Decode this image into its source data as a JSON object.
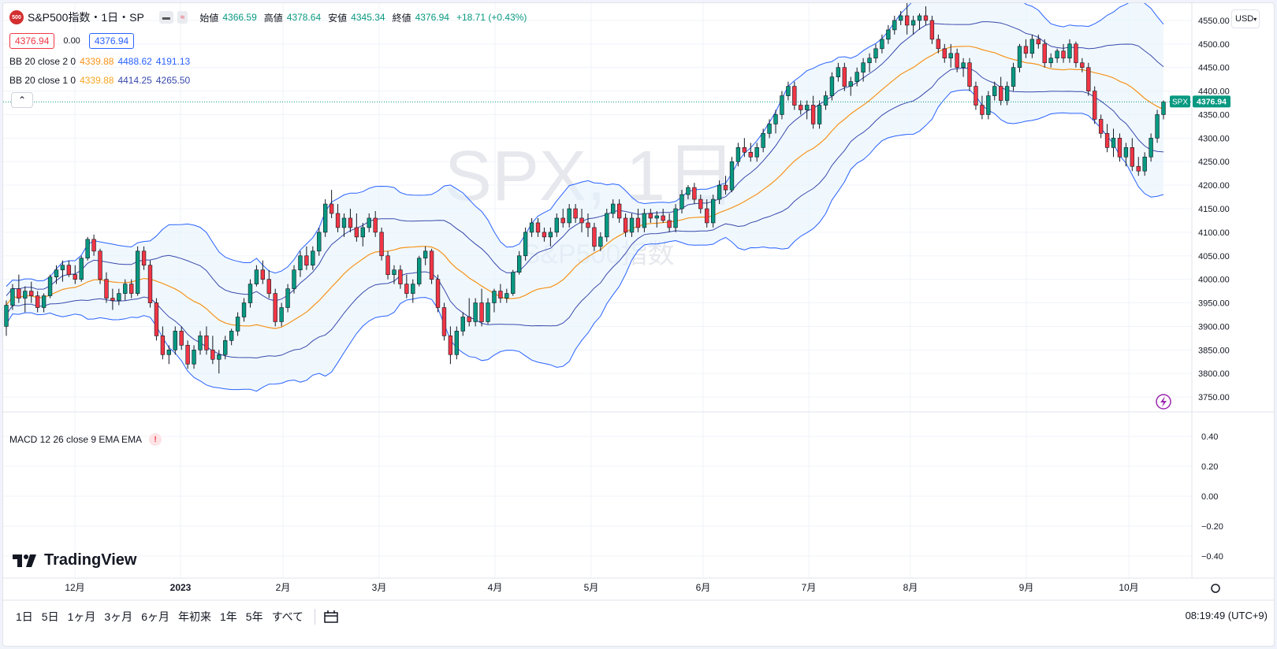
{
  "header": {
    "logo": "500",
    "title": "S&P500指数・1日・SP",
    "ohlc": [
      {
        "label": "始値",
        "value": "4366.59"
      },
      {
        "label": "高値",
        "value": "4378.64"
      },
      {
        "label": "安値",
        "value": "4345.34"
      },
      {
        "label": "終値",
        "value": "4376.94"
      }
    ],
    "change": "+18.71 (+0.43%)",
    "bid": "4376.94",
    "spread": "0.00",
    "ask": "4376.94"
  },
  "indicators": {
    "bb1": {
      "label": "BB 20 close 2 0",
      "mid": "4339.88",
      "upper": "4488.62",
      "lower": "4191.13"
    },
    "bb2": {
      "label": "BB 20 close 1 0",
      "mid": "4339.88",
      "upper": "4414.25",
      "lower": "4265.50"
    },
    "macd": {
      "label": "MACD 12 26 close 9 EMA EMA"
    }
  },
  "watermark": {
    "main": "SPX, 1日",
    "sub": "S&P500指数"
  },
  "currency": "USD",
  "last_price_tag": {
    "symbol": "SPX",
    "price": "4376.94"
  },
  "price_axis": [
    "4550.00",
    "4500.00",
    "4450.00",
    "4400.00",
    "4350.00",
    "4300.00",
    "4250.00",
    "4200.00",
    "4150.00",
    "4100.00",
    "4050.00",
    "4000.00",
    "3950.00",
    "3900.00",
    "3850.00",
    "3800.00",
    "3750.00"
  ],
  "macd_axis": [
    "0.40",
    "0.20",
    "0.00",
    "−0.20",
    "−0.40"
  ],
  "time_axis": [
    "12月",
    "2023",
    "2月",
    "3月",
    "4月",
    "5月",
    "6月",
    "7月",
    "8月",
    "9月",
    "10月"
  ],
  "ranges": [
    "1日",
    "5日",
    "1ヶ月",
    "3ヶ月",
    "6ヶ月",
    "年初来",
    "1年",
    "5年",
    "すべて"
  ],
  "clock": "08:19:49 (UTC+9)",
  "brand": "TradingView",
  "colors": {
    "up": "#089981",
    "down": "#f23645",
    "basis": "#f7931a",
    "band": "#2962ff",
    "fill": "#e3f2fd"
  },
  "chart_data": {
    "type": "candlestick",
    "ylim": [
      3720,
      4570
    ],
    "candles": [
      [
        3900,
        3955,
        3880,
        3945
      ],
      [
        3945,
        3990,
        3935,
        3980
      ],
      [
        3980,
        4010,
        3950,
        3960
      ],
      [
        3960,
        3985,
        3930,
        3975
      ],
      [
        3975,
        3995,
        3950,
        3965
      ],
      [
        3965,
        3975,
        3930,
        3940
      ],
      [
        3940,
        3970,
        3930,
        3965
      ],
      [
        3965,
        4010,
        3960,
        4005
      ],
      [
        4005,
        4030,
        3990,
        4020
      ],
      [
        4020,
        4040,
        3995,
        4030
      ],
      [
        4030,
        4040,
        4005,
        4010
      ],
      [
        4010,
        4030,
        3990,
        4000
      ],
      [
        4000,
        4050,
        3995,
        4045
      ],
      [
        4045,
        4090,
        4040,
        4085
      ],
      [
        4085,
        4095,
        4050,
        4060
      ],
      [
        4060,
        4065,
        3990,
        4000
      ],
      [
        4000,
        4015,
        3950,
        3960
      ],
      [
        3960,
        3980,
        3935,
        3955
      ],
      [
        3955,
        3980,
        3945,
        3970
      ],
      [
        3970,
        4000,
        3955,
        3990
      ],
      [
        3990,
        4000,
        3960,
        3970
      ],
      [
        3970,
        4070,
        3965,
        4060
      ],
      [
        4060,
        4070,
        4020,
        4030
      ],
      [
        4030,
        4040,
        3940,
        3950
      ],
      [
        3950,
        3960,
        3870,
        3880
      ],
      [
        3880,
        3900,
        3830,
        3840
      ],
      [
        3840,
        3860,
        3820,
        3850
      ],
      [
        3850,
        3900,
        3840,
        3890
      ],
      [
        3890,
        3900,
        3850,
        3860
      ],
      [
        3860,
        3870,
        3810,
        3820
      ],
      [
        3820,
        3860,
        3810,
        3850
      ],
      [
        3850,
        3890,
        3840,
        3880
      ],
      [
        3880,
        3900,
        3840,
        3850
      ],
      [
        3850,
        3880,
        3820,
        3830
      ],
      [
        3830,
        3850,
        3800,
        3840
      ],
      [
        3840,
        3880,
        3830,
        3870
      ],
      [
        3870,
        3895,
        3860,
        3890
      ],
      [
        3890,
        3930,
        3880,
        3920
      ],
      [
        3920,
        3960,
        3910,
        3950
      ],
      [
        3950,
        4000,
        3940,
        3990
      ],
      [
        3990,
        4030,
        3985,
        4020
      ],
      [
        4020,
        4040,
        3990,
        4000
      ],
      [
        4000,
        4020,
        3960,
        3970
      ],
      [
        3970,
        3980,
        3900,
        3910
      ],
      [
        3910,
        3950,
        3900,
        3940
      ],
      [
        3940,
        3990,
        3930,
        3980
      ],
      [
        3980,
        4030,
        3970,
        4020
      ],
      [
        4020,
        4060,
        4005,
        4050
      ],
      [
        4050,
        4070,
        4020,
        4030
      ],
      [
        4030,
        4070,
        4020,
        4060
      ],
      [
        4060,
        4110,
        4050,
        4100
      ],
      [
        4100,
        4170,
        4090,
        4160
      ],
      [
        4160,
        4190,
        4130,
        4140
      ],
      [
        4140,
        4160,
        4100,
        4110
      ],
      [
        4110,
        4140,
        4090,
        4130
      ],
      [
        4130,
        4150,
        4100,
        4110
      ],
      [
        4110,
        4140,
        4080,
        4090
      ],
      [
        4090,
        4120,
        4070,
        4110
      ],
      [
        4110,
        4140,
        4100,
        4130
      ],
      [
        4130,
        4145,
        4090,
        4100
      ],
      [
        4100,
        4110,
        4040,
        4050
      ],
      [
        4050,
        4060,
        4000,
        4010
      ],
      [
        4010,
        4030,
        3990,
        4020
      ],
      [
        4020,
        4030,
        3980,
        3990
      ],
      [
        3990,
        4010,
        3960,
        3970
      ],
      [
        3970,
        4000,
        3950,
        3990
      ],
      [
        3990,
        4050,
        3985,
        4045
      ],
      [
        4045,
        4070,
        4030,
        4060
      ],
      [
        4060,
        4065,
        3990,
        4000
      ],
      [
        4000,
        4010,
        3930,
        3940
      ],
      [
        3940,
        3950,
        3870,
        3880
      ],
      [
        3880,
        3900,
        3820,
        3840
      ],
      [
        3840,
        3900,
        3830,
        3890
      ],
      [
        3890,
        3930,
        3880,
        3920
      ],
      [
        3920,
        3960,
        3900,
        3910
      ],
      [
        3910,
        3960,
        3900,
        3950
      ],
      [
        3950,
        3980,
        3900,
        3910
      ],
      [
        3910,
        3960,
        3905,
        3950
      ],
      [
        3950,
        3980,
        3930,
        3975
      ],
      [
        3975,
        3990,
        3950,
        3960
      ],
      [
        3960,
        3980,
        3950,
        3970
      ],
      [
        3970,
        4020,
        3965,
        4015
      ],
      [
        4015,
        4060,
        4010,
        4050
      ],
      [
        4050,
        4110,
        4040,
        4100
      ],
      [
        4100,
        4130,
        4090,
        4120
      ],
      [
        4120,
        4130,
        4090,
        4100
      ],
      [
        4100,
        4110,
        4080,
        4090
      ],
      [
        4090,
        4110,
        4070,
        4100
      ],
      [
        4100,
        4140,
        4090,
        4130
      ],
      [
        4130,
        4150,
        4110,
        4120
      ],
      [
        4120,
        4160,
        4110,
        4150
      ],
      [
        4150,
        4160,
        4120,
        4130
      ],
      [
        4130,
        4150,
        4100,
        4120
      ],
      [
        4120,
        4140,
        4090,
        4110
      ],
      [
        4110,
        4120,
        4060,
        4070
      ],
      [
        4070,
        4100,
        4060,
        4090
      ],
      [
        4090,
        4150,
        4080,
        4140
      ],
      [
        4140,
        4170,
        4130,
        4160
      ],
      [
        4160,
        4170,
        4120,
        4130
      ],
      [
        4130,
        4140,
        4090,
        4100
      ],
      [
        4100,
        4140,
        4090,
        4130
      ],
      [
        4130,
        4150,
        4100,
        4110
      ],
      [
        4110,
        4150,
        4100,
        4140
      ],
      [
        4140,
        4150,
        4120,
        4130
      ],
      [
        4130,
        4145,
        4110,
        4135
      ],
      [
        4135,
        4150,
        4120,
        4125
      ],
      [
        4125,
        4140,
        4100,
        4110
      ],
      [
        4110,
        4160,
        4100,
        4150
      ],
      [
        4150,
        4190,
        4140,
        4180
      ],
      [
        4180,
        4200,
        4170,
        4195
      ],
      [
        4195,
        4205,
        4160,
        4170
      ],
      [
        4170,
        4180,
        4140,
        4150
      ],
      [
        4150,
        4170,
        4110,
        4120
      ],
      [
        4120,
        4180,
        4110,
        4170
      ],
      [
        4170,
        4210,
        4160,
        4200
      ],
      [
        4200,
        4220,
        4180,
        4190
      ],
      [
        4190,
        4260,
        4185,
        4250
      ],
      [
        4250,
        4290,
        4240,
        4280
      ],
      [
        4280,
        4300,
        4260,
        4270
      ],
      [
        4270,
        4290,
        4250,
        4260
      ],
      [
        4260,
        4290,
        4250,
        4280
      ],
      [
        4280,
        4320,
        4270,
        4310
      ],
      [
        4310,
        4340,
        4300,
        4330
      ],
      [
        4330,
        4360,
        4310,
        4350
      ],
      [
        4350,
        4400,
        4340,
        4390
      ],
      [
        4390,
        4420,
        4380,
        4410
      ],
      [
        4410,
        4420,
        4360,
        4370
      ],
      [
        4370,
        4380,
        4350,
        4360
      ],
      [
        4360,
        4380,
        4340,
        4370
      ],
      [
        4370,
        4390,
        4320,
        4330
      ],
      [
        4330,
        4380,
        4320,
        4370
      ],
      [
        4370,
        4400,
        4360,
        4390
      ],
      [
        4390,
        4440,
        4380,
        4430
      ],
      [
        4430,
        4460,
        4420,
        4450
      ],
      [
        4450,
        4460,
        4400,
        4410
      ],
      [
        4410,
        4430,
        4390,
        4420
      ],
      [
        4420,
        4450,
        4410,
        4440
      ],
      [
        4440,
        4470,
        4420,
        4460
      ],
      [
        4460,
        4480,
        4440,
        4470
      ],
      [
        4470,
        4500,
        4460,
        4490
      ],
      [
        4490,
        4520,
        4480,
        4510
      ],
      [
        4510,
        4540,
        4500,
        4530
      ],
      [
        4530,
        4560,
        4520,
        4550
      ],
      [
        4550,
        4570,
        4540,
        4560
      ],
      [
        4560,
        4590,
        4520,
        4540
      ],
      [
        4540,
        4560,
        4520,
        4550
      ],
      [
        4550,
        4565,
        4530,
        4560
      ],
      [
        4560,
        4580,
        4540,
        4550
      ],
      [
        4550,
        4560,
        4500,
        4510
      ],
      [
        4510,
        4520,
        4480,
        4490
      ],
      [
        4490,
        4500,
        4460,
        4470
      ],
      [
        4470,
        4500,
        4450,
        4480
      ],
      [
        4480,
        4490,
        4440,
        4450
      ],
      [
        4450,
        4470,
        4430,
        4460
      ],
      [
        4460,
        4470,
        4400,
        4410
      ],
      [
        4410,
        4420,
        4360,
        4370
      ],
      [
        4370,
        4390,
        4340,
        4350
      ],
      [
        4350,
        4400,
        4340,
        4390
      ],
      [
        4390,
        4420,
        4380,
        4410
      ],
      [
        4410,
        4430,
        4370,
        4380
      ],
      [
        4380,
        4420,
        4370,
        4410
      ],
      [
        4410,
        4460,
        4400,
        4450
      ],
      [
        4450,
        4500,
        4440,
        4495
      ],
      [
        4495,
        4510,
        4470,
        4480
      ],
      [
        4480,
        4520,
        4470,
        4510
      ],
      [
        4510,
        4520,
        4490,
        4500
      ],
      [
        4500,
        4510,
        4450,
        4460
      ],
      [
        4460,
        4480,
        4450,
        4470
      ],
      [
        4470,
        4490,
        4460,
        4485
      ],
      [
        4485,
        4500,
        4460,
        4470
      ],
      [
        4470,
        4510,
        4460,
        4500
      ],
      [
        4500,
        4505,
        4450,
        4460
      ],
      [
        4460,
        4470,
        4440,
        4450
      ],
      [
        4450,
        4460,
        4390,
        4400
      ],
      [
        4400,
        4410,
        4330,
        4340
      ],
      [
        4340,
        4350,
        4300,
        4310
      ],
      [
        4310,
        4330,
        4270,
        4280
      ],
      [
        4280,
        4320,
        4260,
        4300
      ],
      [
        4300,
        4310,
        4250,
        4260
      ],
      [
        4260,
        4290,
        4240,
        4280
      ],
      [
        4280,
        4300,
        4230,
        4240
      ],
      [
        4240,
        4260,
        4220,
        4230
      ],
      [
        4230,
        4270,
        4220,
        4260
      ],
      [
        4260,
        4310,
        4250,
        4300
      ],
      [
        4300,
        4360,
        4290,
        4350
      ],
      [
        4350,
        4380,
        4340,
        4377
      ]
    ]
  }
}
